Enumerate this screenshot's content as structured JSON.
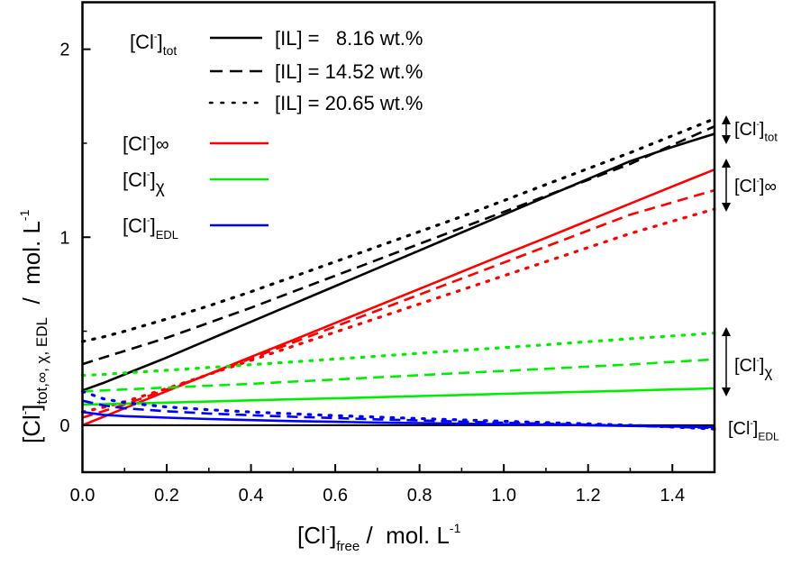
{
  "chart_data": {
    "type": "line",
    "title": "",
    "xlabel": {
      "main": "[Cl",
      "sup": "-",
      "bracket": "]",
      "sub": "free",
      "unit": " /  mol. L",
      "unit_sup": "-1"
    },
    "ylabel": {
      "main": "[Cl",
      "sup": "-",
      "bracket": "]",
      "sub": "tot,∞, χ, EDL",
      "unit": "  /  mol. L",
      "unit_sup": "-1"
    },
    "xlim": [
      0,
      1.5
    ],
    "ylim": [
      -0.25,
      2.25
    ],
    "xticks": [
      0.0,
      0.2,
      0.4,
      0.6,
      0.8,
      1.0,
      1.2,
      1.4
    ],
    "xtick_labels": [
      "0.0",
      "0.2",
      "0.4",
      "0.6",
      "0.8",
      "1.0",
      "1.2",
      "1.4"
    ],
    "yticks": [
      0,
      1,
      2
    ],
    "ytick_labels": [
      "0",
      "1",
      "2"
    ],
    "grid": false,
    "x": [
      0,
      0.05,
      0.1,
      0.2,
      0.3,
      0.4,
      0.5,
      0.6,
      0.7,
      0.8,
      0.9,
      1.0,
      1.1,
      1.2,
      1.3,
      1.4,
      1.5
    ],
    "series": [
      {
        "name": "[Cl-]tot, [IL] = 8.16 wt.%",
        "quantity": "tot",
        "il": "8.16",
        "color": "#000000",
        "style": "solid",
        "values": [
          0.185,
          0.225,
          0.27,
          0.36,
          0.455,
          0.55,
          0.645,
          0.74,
          0.835,
          0.93,
          1.025,
          1.12,
          1.215,
          1.31,
          1.405,
          1.48,
          1.55
        ]
      },
      {
        "name": "[Cl-]tot, [IL] = 14.52 wt.%",
        "quantity": "tot",
        "il": "14.52",
        "color": "#000000",
        "style": "dashed",
        "values": [
          0.325,
          0.36,
          0.395,
          0.465,
          0.545,
          0.625,
          0.71,
          0.795,
          0.88,
          0.965,
          1.05,
          1.135,
          1.22,
          1.305,
          1.39,
          1.49,
          1.59
        ]
      },
      {
        "name": "[Cl-]tot, [IL] = 20.65 wt.%",
        "quantity": "tot",
        "il": "20.65",
        "color": "#000000",
        "style": "dotted",
        "values": [
          0.445,
          0.47,
          0.5,
          0.565,
          0.635,
          0.71,
          0.79,
          0.87,
          0.95,
          1.03,
          1.11,
          1.195,
          1.28,
          1.365,
          1.45,
          1.54,
          1.63
        ]
      },
      {
        "name": "[Cl-]∞, [IL] = 8.16 wt.%",
        "quantity": "inf",
        "il": "8.16",
        "color": "#ff0000",
        "style": "solid",
        "values": [
          0.0,
          0.045,
          0.09,
          0.181,
          0.272,
          0.363,
          0.453,
          0.544,
          0.635,
          0.725,
          0.816,
          0.907,
          0.997,
          1.088,
          1.179,
          1.27,
          1.36
        ]
      },
      {
        "name": "[Cl-]∞, [IL] = 14.52 wt.%",
        "quantity": "inf",
        "il": "14.52",
        "color": "#ff0000",
        "style": "dashed",
        "values": [
          0.04,
          0.075,
          0.11,
          0.19,
          0.27,
          0.355,
          0.44,
          0.525,
          0.61,
          0.695,
          0.78,
          0.865,
          0.95,
          1.035,
          1.12,
          1.185,
          1.25
        ]
      },
      {
        "name": "[Cl-]∞, [IL] = 20.65 wt.%",
        "quantity": "inf",
        "il": "20.65",
        "color": "#ff0000",
        "style": "dotted",
        "values": [
          0.07,
          0.095,
          0.125,
          0.195,
          0.27,
          0.345,
          0.42,
          0.495,
          0.57,
          0.645,
          0.72,
          0.795,
          0.87,
          0.945,
          1.02,
          1.085,
          1.15
        ]
      },
      {
        "name": "[Cl-]χ, [IL] = 8.16 wt.%",
        "quantity": "chi",
        "il": "8.16",
        "color": "#00ee00",
        "style": "solid",
        "values": [
          0.11,
          0.112,
          0.115,
          0.12,
          0.126,
          0.132,
          0.138,
          0.143,
          0.149,
          0.155,
          0.161,
          0.167,
          0.173,
          0.178,
          0.184,
          0.19,
          0.196
        ]
      },
      {
        "name": "[Cl-]χ, [IL] = 14.52 wt.%",
        "quantity": "chi",
        "il": "14.52",
        "color": "#00ee00",
        "style": "dashed",
        "values": [
          0.18,
          0.185,
          0.19,
          0.2,
          0.21,
          0.22,
          0.232,
          0.243,
          0.255,
          0.266,
          0.278,
          0.289,
          0.3,
          0.312,
          0.323,
          0.337,
          0.35
        ]
      },
      {
        "name": "[Cl-]χ, [IL] = 20.65 wt.%",
        "quantity": "chi",
        "il": "20.65",
        "color": "#00ee00",
        "style": "dotted",
        "values": [
          0.265,
          0.27,
          0.278,
          0.292,
          0.307,
          0.322,
          0.337,
          0.352,
          0.367,
          0.383,
          0.398,
          0.413,
          0.428,
          0.444,
          0.46,
          0.475,
          0.49
        ]
      },
      {
        "name": "[Cl-]EDL, [IL] = 8.16 wt.%",
        "quantity": "edl",
        "il": "8.16",
        "color": "#0000ff",
        "style": "solid",
        "values": [
          0.07,
          0.055,
          0.048,
          0.04,
          0.033,
          0.027,
          0.022,
          0.018,
          0.014,
          0.011,
          0.008,
          0.005,
          0.003,
          0.0,
          -0.004,
          -0.007,
          -0.01
        ]
      },
      {
        "name": "[Cl-]EDL, [IL] = 14.52 wt.%",
        "quantity": "edl",
        "il": "14.52",
        "color": "#0000ff",
        "style": "dashed",
        "values": [
          0.13,
          0.105,
          0.09,
          0.074,
          0.062,
          0.053,
          0.045,
          0.038,
          0.031,
          0.025,
          0.019,
          0.013,
          0.008,
          0.003,
          -0.003,
          -0.009,
          -0.015
        ]
      },
      {
        "name": "[Cl-]EDL, [IL] = 20.65 wt.%",
        "quantity": "edl",
        "il": "20.65",
        "color": "#0000ff",
        "style": "dotted",
        "values": [
          0.18,
          0.14,
          0.12,
          0.097,
          0.082,
          0.07,
          0.06,
          0.051,
          0.043,
          0.035,
          0.028,
          0.021,
          0.014,
          0.007,
          0.0,
          -0.01,
          -0.02
        ]
      }
    ],
    "zero_line": {
      "y": 0,
      "color": "#000000"
    },
    "legend": {
      "placement": "top-left",
      "style_header": {
        "prefix": "[Cl",
        "sup": "-",
        "bracket": "]",
        "sub": "tot"
      },
      "style_entries": [
        {
          "label": "[IL] =   8.16 wt.%",
          "style": "solid"
        },
        {
          "label": "[IL] = 14.52 wt.%",
          "style": "dashed"
        },
        {
          "label": "[IL] = 20.65 wt.%",
          "style": "dotted"
        }
      ],
      "color_entries": [
        {
          "prefix": "[Cl",
          "sup": "-",
          "bracket": "]",
          "sub": "∞",
          "sub_inline": true,
          "color": "#ff0000"
        },
        {
          "prefix": "[Cl",
          "sup": "-",
          "bracket": "]",
          "sub": "χ",
          "sub_inline": false,
          "color": "#00ee00"
        },
        {
          "prefix": "[Cl",
          "sup": "-",
          "bracket": "]",
          "sub": "EDL",
          "sub_inline": false,
          "color": "#0000ff"
        }
      ]
    },
    "annotations": [
      {
        "prefix": "[Cl",
        "sup": "-",
        "bracket": "]",
        "sub": "tot",
        "range_quantity": "tot",
        "arrow": true
      },
      {
        "prefix": "[Cl",
        "sup": "-",
        "bracket": "]",
        "sub": "∞",
        "range_quantity": "inf",
        "arrow": true
      },
      {
        "prefix": "[Cl",
        "sup": "-",
        "bracket": "]",
        "sub": "χ",
        "range_quantity": "chi",
        "arrow": true
      },
      {
        "prefix": "[Cl",
        "sup": "-",
        "bracket": "]",
        "sub": "EDL",
        "range_quantity": "edl",
        "arrow": false
      }
    ]
  }
}
